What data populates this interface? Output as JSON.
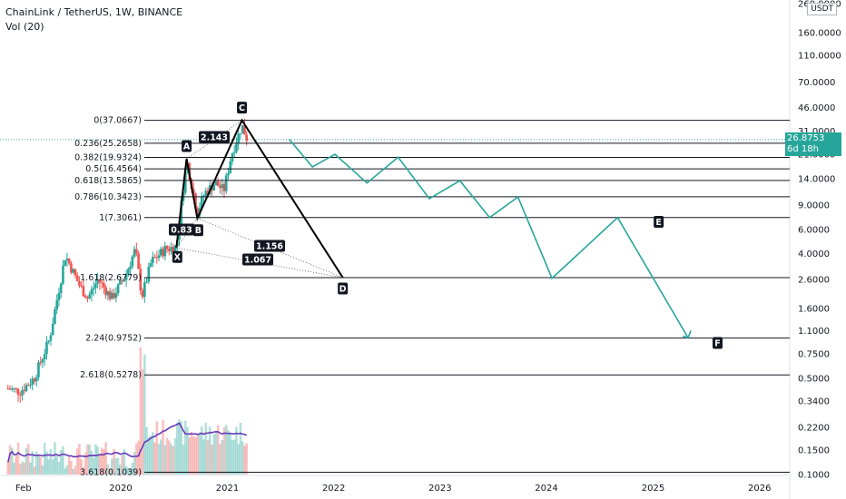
{
  "header": {
    "title": "ChainLink / TetherUS, 1W, BINANCE",
    "indicator": "Vol (20)"
  },
  "currency_badge": "USDT",
  "price_now": {
    "value": "26.8753",
    "countdown": "6d 18h"
  },
  "chart_data": {
    "type": "candlestick",
    "title": "ChainLink / TetherUS, 1W, BINANCE",
    "y_scale": "log",
    "ylim": [
      0.1,
      260
    ],
    "y_ticks": [
      "260.0000",
      "160.0000",
      "110.0000",
      "70.0000",
      "46.0000",
      "31.0000",
      "21.0000",
      "14.0000",
      "9.0000",
      "6.0000",
      "4.0000",
      "2.6000",
      "1.6000",
      "1.1000",
      "0.7500",
      "0.5000",
      "0.3400",
      "0.2200",
      "0.1500",
      "0.1000"
    ],
    "x_ticks": [
      "Feb",
      "2020",
      "2021",
      "2022",
      "2023",
      "2024",
      "2025",
      "2026"
    ],
    "fib_levels": [
      {
        "label": "0(37.0667)",
        "value": 37.0667
      },
      {
        "label": "0.236(25.2658)",
        "value": 25.2658
      },
      {
        "label": "0.382(19.9324)",
        "value": 19.9324
      },
      {
        "label": "0.5(16.4564)",
        "value": 16.4564
      },
      {
        "label": "0.618(13.5865)",
        "value": 13.5865
      },
      {
        "label": "0.786(10.3423)",
        "value": 10.3423
      },
      {
        "label": "1(7.3061)",
        "value": 7.3061
      },
      {
        "label": "1.618(2.6779)",
        "value": 2.6779
      },
      {
        "label": "2.24(0.9752)",
        "value": 0.9752
      },
      {
        "label": "2.618(0.5278)",
        "value": 0.5278
      },
      {
        "label": "3.618(0.1039)",
        "value": 0.1039
      }
    ],
    "pattern_points": [
      {
        "label": "X",
        "date": "2020-07-10",
        "value": 4.4
      },
      {
        "label": "A",
        "date": "2020-08-14",
        "value": 19.5
      },
      {
        "label": "B",
        "date": "2020-09-20",
        "value": 7.2
      },
      {
        "label": "C",
        "date": "2021-02-20",
        "value": 37.07
      },
      {
        "label": "D",
        "date": "2022-02-01",
        "value": 2.68
      }
    ],
    "ratio_labels": [
      "0.83",
      "2.143",
      "1.156",
      "1.067"
    ],
    "projection": {
      "end_labels": [
        "E",
        "F"
      ],
      "points": [
        {
          "date": "2021-08-01",
          "value": 27
        },
        {
          "date": "2021-10-20",
          "value": 17
        },
        {
          "date": "2022-01-05",
          "value": 21
        },
        {
          "date": "2022-04-25",
          "value": 13
        },
        {
          "date": "2022-08-10",
          "value": 20
        },
        {
          "date": "2022-11-25",
          "value": 10
        },
        {
          "date": "2023-03-10",
          "value": 13.5
        },
        {
          "date": "2023-06-20",
          "value": 7.3
        },
        {
          "date": "2023-09-25",
          "value": 10.3
        },
        {
          "date": "2024-01-20",
          "value": 2.65
        },
        {
          "date": "2024-09-01",
          "value": 7.3
        },
        {
          "date": "2025-05-01",
          "value": 0.98
        }
      ]
    },
    "last_price": 26.8753,
    "ohlc_series_note": "weekly candles Dec 2018 - Mar 2021 with volume and Vol(20) moving average"
  },
  "colors": {
    "up": "#26a69a",
    "down": "#ef5350",
    "pattern": "#000000",
    "projection": "#26a69a",
    "vol_ma": "#673ab7",
    "fib": "#131722"
  }
}
